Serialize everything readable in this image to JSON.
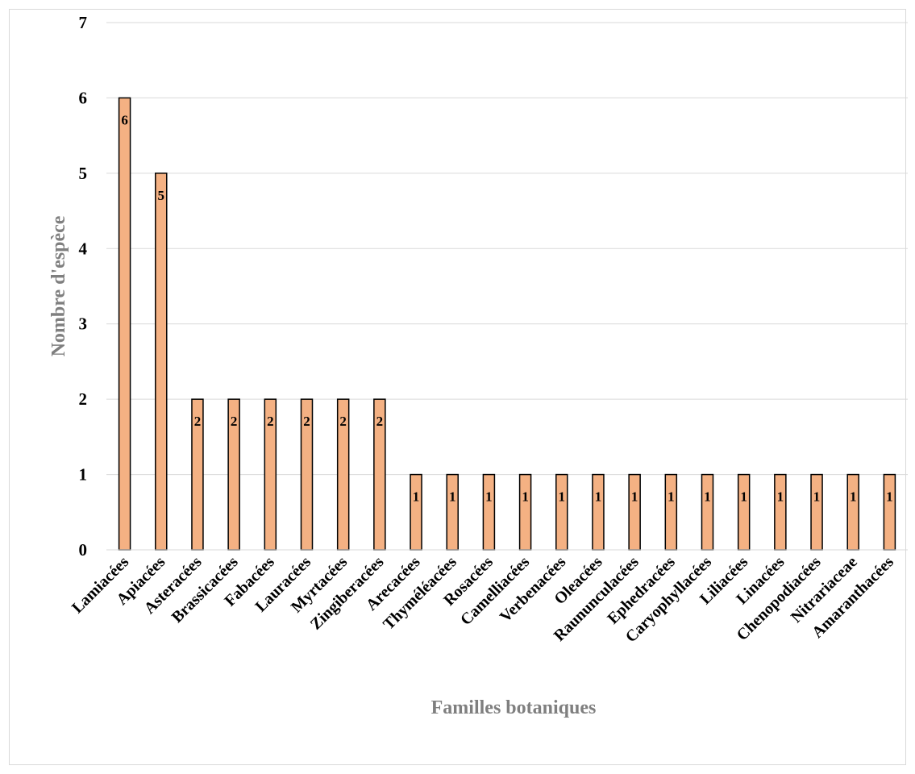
{
  "chart_data": {
    "type": "bar",
    "categories": [
      "Lamiacées",
      "Apiacées",
      "Asteracées",
      "Brassicacées",
      "Fabacées",
      "Lauracées",
      "Myrtacées",
      "Zingiberacées",
      "Arecacées",
      "Thyméléacées",
      "Rosacées",
      "Camelliacées",
      "Verbenacées",
      "Oleacées",
      "Raununculacées",
      "Ephedracées",
      "Caryophyllacées",
      "Liliacées",
      "Linacées",
      "Chenopodiacées",
      "Nitrariaceae",
      "Amaranthacées"
    ],
    "values": [
      6,
      5,
      2,
      2,
      2,
      2,
      2,
      2,
      1,
      1,
      1,
      1,
      1,
      1,
      1,
      1,
      1,
      1,
      1,
      1,
      1,
      1
    ],
    "xlabel": "Familles botaniques",
    "ylabel": "Nombre d'espèce",
    "ylim": [
      0,
      7
    ],
    "yticks": [
      0,
      1,
      2,
      3,
      4,
      5,
      6,
      7
    ],
    "grid": true,
    "legend": "none",
    "data_labels": true,
    "bar_color": "#f4b183",
    "bar_edge_color": "#000000"
  }
}
